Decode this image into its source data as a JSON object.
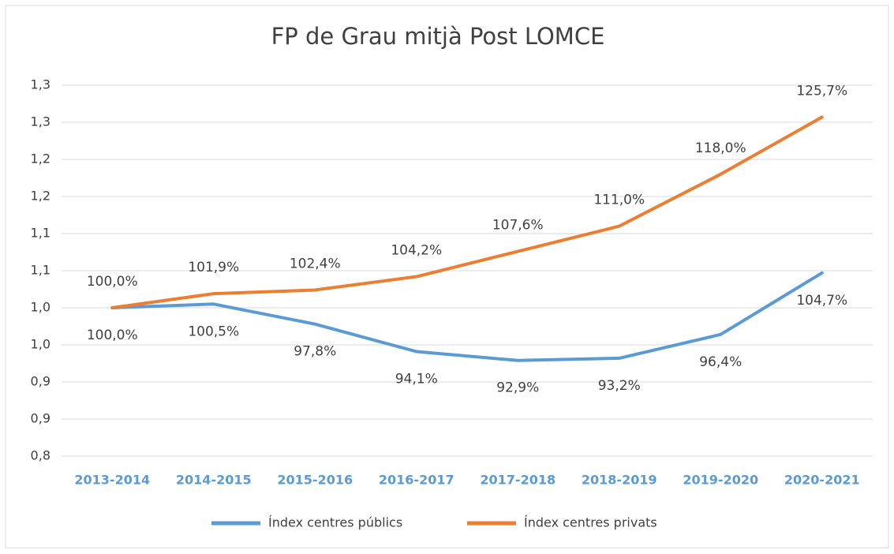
{
  "chart_data": {
    "type": "line",
    "title": "FP de Grau mitjà Post LOMCE",
    "categories": [
      "2013-2014",
      "2014-2015",
      "2015-2016",
      "2016-2017",
      "2017-2018",
      "2018-2019",
      "2019-2020",
      "2020-2021"
    ],
    "series": [
      {
        "name": "Índex centres públics",
        "color": "#5b9bd5",
        "values": [
          1.0,
          1.005,
          0.978,
          0.941,
          0.929,
          0.932,
          0.964,
          1.047
        ],
        "value_labels": [
          "100,0%",
          "100,5%",
          "97,8%",
          "94,1%",
          "92,9%",
          "93,2%",
          "96,4%",
          "104,7%"
        ]
      },
      {
        "name": "Índex centres privats",
        "color": "#ed7d31",
        "values": [
          1.0,
          1.019,
          1.024,
          1.042,
          1.076,
          1.11,
          1.18,
          1.257
        ],
        "value_labels": [
          "100,0%",
          "101,9%",
          "102,4%",
          "104,2%",
          "107,6%",
          "111,0%",
          "118,0%",
          "125,7%"
        ]
      }
    ],
    "ylim": [
      0.8,
      1.3
    ],
    "yticks": [
      {
        "value": 0.8,
        "label": "0,8"
      },
      {
        "value": 0.85,
        "label": "0,9"
      },
      {
        "value": 0.9,
        "label": "0,9"
      },
      {
        "value": 0.95,
        "label": "1,0"
      },
      {
        "value": 1.0,
        "label": "1,0"
      },
      {
        "value": 1.05,
        "label": "1,1"
      },
      {
        "value": 1.1,
        "label": "1,1"
      },
      {
        "value": 1.15,
        "label": "1,2"
      },
      {
        "value": 1.2,
        "label": "1,2"
      },
      {
        "value": 1.25,
        "label": "1,3"
      },
      {
        "value": 1.3,
        "label": "1,3"
      }
    ],
    "grid": true,
    "legend": "bottom"
  }
}
